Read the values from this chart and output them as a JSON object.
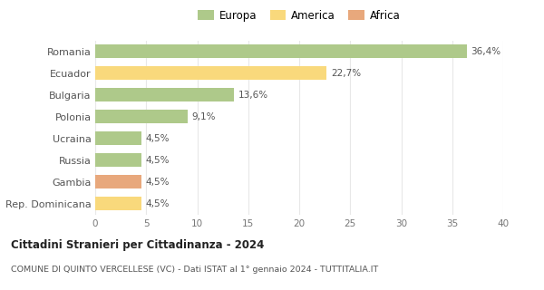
{
  "categories": [
    "Romania",
    "Ecuador",
    "Bulgaria",
    "Polonia",
    "Ucraina",
    "Russia",
    "Gambia",
    "Rep. Dominicana"
  ],
  "values": [
    36.4,
    22.7,
    13.6,
    9.1,
    4.5,
    4.5,
    4.5,
    4.5
  ],
  "labels": [
    "36,4%",
    "22,7%",
    "13,6%",
    "9,1%",
    "4,5%",
    "4,5%",
    "4,5%",
    "4,5%"
  ],
  "colors": [
    "#aec98a",
    "#f9d97c",
    "#aec98a",
    "#aec98a",
    "#aec98a",
    "#aec98a",
    "#e8a87c",
    "#f9d97c"
  ],
  "legend_labels": [
    "Europa",
    "America",
    "Africa"
  ],
  "legend_colors": [
    "#aec98a",
    "#f9d97c",
    "#e8a87c"
  ],
  "title": "Cittadini Stranieri per Cittadinanza - 2024",
  "subtitle": "COMUNE DI QUINTO VERCELLESE (VC) - Dati ISTAT al 1° gennaio 2024 - TUTTITALIA.IT",
  "xlim": [
    0,
    40
  ],
  "xticks": [
    0,
    5,
    10,
    15,
    20,
    25,
    30,
    35,
    40
  ],
  "background_color": "#ffffff",
  "grid_color": "#e8e8e8"
}
